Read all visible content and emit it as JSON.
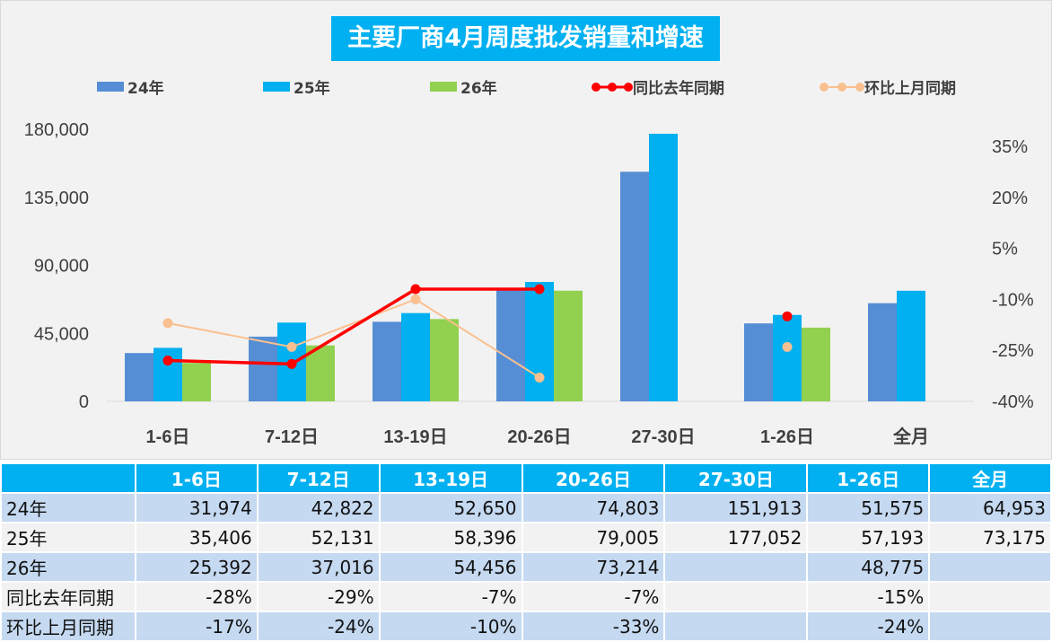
{
  "chart_data": {
    "type": "bar+line",
    "title": "主要厂商4月周度批发销量和增速",
    "categories": [
      "1-6日",
      "7-12日",
      "13-19日",
      "20-26日",
      "27-30日",
      "1-26日",
      "全月"
    ],
    "series": [
      {
        "name": "24年",
        "type": "bar",
        "color": "#558ed5",
        "values": [
          31974,
          42822,
          52650,
          74803,
          151913,
          51575,
          64953
        ]
      },
      {
        "name": "25年",
        "type": "bar",
        "color": "#00b0f0",
        "values": [
          35406,
          52131,
          58396,
          79005,
          177052,
          57193,
          73175
        ]
      },
      {
        "name": "26年",
        "type": "bar",
        "color": "#92d050",
        "values": [
          25392,
          37016,
          54456,
          73214,
          null,
          48775,
          null
        ]
      },
      {
        "name": "同比去年同期",
        "type": "line",
        "axis": "right",
        "color": "#ff0000",
        "values": [
          -28,
          -29,
          -7,
          -7,
          null,
          -15,
          null
        ]
      },
      {
        "name": "环比上月同期",
        "type": "line",
        "axis": "right",
        "color": "#fac090",
        "values": [
          -17,
          -24,
          -10,
          -33,
          null,
          -24,
          null
        ]
      }
    ],
    "y_left": {
      "min": 0,
      "max": 180000,
      "ticks": [
        "0",
        "45,000",
        "90,000",
        "135,000",
        "180,000"
      ]
    },
    "y_right": {
      "min": -40,
      "max": 40,
      "ticks": [
        "-40%",
        "-25%",
        "-10%",
        "5%",
        "20%",
        "35%"
      ]
    },
    "grid": false,
    "legend": "top"
  },
  "table": {
    "header": [
      "",
      "1-6日",
      "7-12日",
      "13-19日",
      "20-26日",
      "27-30日",
      "1-26日",
      "全月"
    ],
    "rows": [
      [
        "24年",
        "31,974",
        "42,822",
        "52,650",
        "74,803",
        "151,913",
        "51,575",
        "64,953"
      ],
      [
        "25年",
        "35,406",
        "52,131",
        "58,396",
        "79,005",
        "177,052",
        "57,193",
        "73,175"
      ],
      [
        "26年",
        "25,392",
        "37,016",
        "54,456",
        "73,214",
        "",
        "48,775",
        ""
      ],
      [
        "同比去年同期",
        "-28%",
        "-29%",
        "-7%",
        "-7%",
        "",
        "-15%",
        ""
      ],
      [
        "环比上月同期",
        "-17%",
        "-24%",
        "-10%",
        "-33%",
        "",
        "-24%",
        ""
      ]
    ]
  }
}
